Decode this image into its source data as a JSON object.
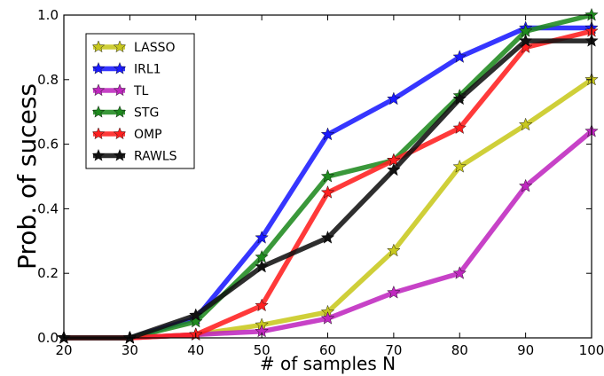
{
  "chart_data": {
    "type": "line",
    "title": "",
    "xlabel": "# of samples N",
    "ylabel": "Prob. of sucess",
    "xlim": [
      20,
      100
    ],
    "ylim": [
      0,
      1.0
    ],
    "x": [
      20,
      30,
      40,
      50,
      60,
      70,
      80,
      90,
      100
    ],
    "xticks": [
      "20",
      "30",
      "40",
      "50",
      "60",
      "70",
      "80",
      "90",
      "100"
    ],
    "yticks": [
      "0.0",
      "0.2",
      "0.4",
      "0.6",
      "0.8",
      "1.0"
    ],
    "grid": false,
    "legend_position": "upper-left",
    "series": [
      {
        "name": "LASSO",
        "color": "#c8c81e",
        "values": [
          0,
          0,
          0.01,
          0.04,
          0.08,
          0.27,
          0.53,
          0.66,
          0.8
        ]
      },
      {
        "name": "IRL1",
        "color": "#1a1aff",
        "values": [
          0,
          0,
          0.06,
          0.31,
          0.63,
          0.74,
          0.87,
          0.96,
          0.96
        ]
      },
      {
        "name": "TL",
        "color": "#bf28bf",
        "values": [
          0,
          0,
          0.01,
          0.02,
          0.06,
          0.14,
          0.2,
          0.47,
          0.64
        ]
      },
      {
        "name": "STG",
        "color": "#1f8a1f",
        "values": [
          0,
          0,
          0.05,
          0.25,
          0.5,
          0.55,
          0.75,
          0.95,
          1.0
        ]
      },
      {
        "name": "OMP",
        "color": "#ff1f1f",
        "values": [
          0,
          0,
          0.01,
          0.1,
          0.45,
          0.55,
          0.65,
          0.9,
          0.95
        ]
      },
      {
        "name": "RAWLS",
        "color": "#111111",
        "values": [
          0,
          0,
          0.07,
          0.22,
          0.31,
          0.52,
          0.74,
          0.92,
          0.92
        ]
      }
    ]
  }
}
